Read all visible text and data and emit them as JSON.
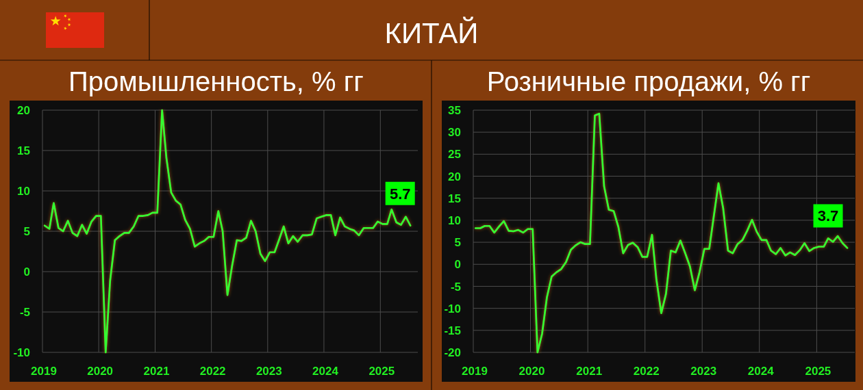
{
  "chart_data": [
    {
      "type": "other",
      "title": "КИТАЙ"
    },
    {
      "type": "line",
      "title": "Промышленность, % гг",
      "color": "#33ff33",
      "x": [
        "2019-01-15",
        "2019-02-15",
        "2019-03-15",
        "2019-04-15",
        "2019-05-15",
        "2019-06-15",
        "2019-07-15",
        "2019-08-15",
        "2019-09-15",
        "2019-10-15",
        "2019-11-15",
        "2019-12-15",
        "2020-01-15",
        "2020-02-15",
        "2020-03-15",
        "2020-04-15",
        "2020-05-15",
        "2020-06-15",
        "2020-07-15",
        "2020-08-15",
        "2020-09-15",
        "2020-10-15",
        "2020-11-15",
        "2020-12-15",
        "2021-01-15",
        "2021-02-15",
        "2021-03-15",
        "2021-04-15",
        "2021-05-15",
        "2021-06-15",
        "2021-07-15",
        "2021-08-15",
        "2021-09-15",
        "2021-10-15",
        "2021-11-15",
        "2021-12-15",
        "2022-01-15",
        "2022-02-15",
        "2022-03-15",
        "2022-04-15",
        "2022-05-15",
        "2022-06-15",
        "2022-07-15",
        "2022-08-15",
        "2022-09-15",
        "2022-10-15",
        "2022-11-15",
        "2022-12-15",
        "2023-01-15",
        "2023-02-15",
        "2023-03-15",
        "2023-04-15",
        "2023-05-15",
        "2023-06-15",
        "2023-07-15",
        "2023-08-15",
        "2023-09-15",
        "2023-10-15",
        "2023-11-15",
        "2023-12-15",
        "2024-01-15",
        "2024-02-15",
        "2024-03-15",
        "2024-04-15",
        "2024-05-15",
        "2024-06-15",
        "2024-07-15",
        "2024-08-15",
        "2024-09-15",
        "2024-10-15",
        "2024-11-15",
        "2024-12-15",
        "2025-01-15",
        "2025-02-15",
        "2025-03-15",
        "2025-04-15",
        "2025-05-15",
        "2025-06-15",
        "2025-07-15"
      ],
      "values": [
        5.7,
        5.3,
        8.5,
        5.4,
        5.0,
        6.3,
        4.8,
        4.4,
        5.8,
        4.7,
        6.2,
        6.9,
        6.9,
        -10,
        -1.1,
        3.9,
        4.4,
        4.8,
        4.8,
        5.6,
        6.9,
        6.9,
        7.0,
        7.3,
        7.3,
        20,
        14.1,
        9.8,
        8.8,
        8.3,
        6.4,
        5.3,
        3.1,
        3.5,
        3.8,
        4.3,
        4.3,
        7.5,
        5.0,
        -2.9,
        0.7,
        3.9,
        3.8,
        4.2,
        6.3,
        5.0,
        2.2,
        1.3,
        2.4,
        2.4,
        3.9,
        5.6,
        3.5,
        4.4,
        3.7,
        4.5,
        4.5,
        4.6,
        6.6,
        6.8,
        7.0,
        7.0,
        4.5,
        6.7,
        5.6,
        5.3,
        5.1,
        4.5,
        5.4,
        5.4,
        5.4,
        6.2,
        5.9,
        5.9,
        7.7,
        6.1,
        5.8,
        6.8,
        5.7
      ],
      "xlim": [
        "2019-01",
        "2025-09"
      ],
      "xticks": [
        "2019",
        "2020",
        "2021",
        "2022",
        "2023",
        "2024",
        "2025"
      ],
      "ylim": [
        -10,
        20
      ],
      "yticks": [
        -10,
        -5,
        0,
        5,
        10,
        15,
        20
      ],
      "grid": true,
      "annotations": [
        {
          "text": "5.7",
          "x": "2025-07-15",
          "y": 5.7
        }
      ]
    },
    {
      "type": "line",
      "title": "Розничные продажи, % гг",
      "color": "#33ff33",
      "x": [
        "2019-01-15",
        "2019-02-15",
        "2019-03-15",
        "2019-04-15",
        "2019-05-15",
        "2019-06-15",
        "2019-07-15",
        "2019-08-15",
        "2019-09-15",
        "2019-10-15",
        "2019-11-15",
        "2019-12-15",
        "2020-01-15",
        "2020-02-15",
        "2020-03-15",
        "2020-04-15",
        "2020-05-15",
        "2020-06-15",
        "2020-07-15",
        "2020-08-15",
        "2020-09-15",
        "2020-10-15",
        "2020-11-15",
        "2020-12-15",
        "2021-01-15",
        "2021-02-15",
        "2021-03-15",
        "2021-04-15",
        "2021-05-15",
        "2021-06-15",
        "2021-07-15",
        "2021-08-15",
        "2021-09-15",
        "2021-10-15",
        "2021-11-15",
        "2021-12-15",
        "2022-01-15",
        "2022-02-15",
        "2022-03-15",
        "2022-04-15",
        "2022-05-15",
        "2022-06-15",
        "2022-07-15",
        "2022-08-15",
        "2022-09-15",
        "2022-10-15",
        "2022-11-15",
        "2022-12-15",
        "2023-01-15",
        "2023-02-15",
        "2023-03-15",
        "2023-04-15",
        "2023-05-15",
        "2023-06-15",
        "2023-07-15",
        "2023-08-15",
        "2023-09-15",
        "2023-10-15",
        "2023-11-15",
        "2023-12-15",
        "2024-01-15",
        "2024-02-15",
        "2024-03-15",
        "2024-04-15",
        "2024-05-15",
        "2024-06-15",
        "2024-07-15",
        "2024-08-15",
        "2024-09-15",
        "2024-10-15",
        "2024-11-15",
        "2024-12-15",
        "2025-01-15",
        "2025-02-15",
        "2025-03-15",
        "2025-04-15",
        "2025-05-15",
        "2025-06-15",
        "2025-07-15"
      ],
      "values": [
        8.2,
        8.2,
        8.7,
        8.7,
        7.2,
        8.6,
        9.8,
        7.6,
        7.5,
        7.8,
        7.2,
        8.0,
        8.0,
        -20,
        -15.8,
        -7.5,
        -2.8,
        -1.8,
        -1.1,
        0.5,
        3.3,
        4.3,
        5.0,
        4.6,
        4.6,
        33.8,
        34.2,
        17.7,
        12.4,
        12.1,
        8.5,
        2.5,
        4.4,
        4.9,
        3.9,
        1.7,
        1.7,
        6.7,
        -3.5,
        -11.1,
        -6.7,
        3.1,
        2.7,
        5.4,
        2.5,
        -0.5,
        -5.9,
        -1.8,
        3.5,
        3.5,
        10.6,
        18.4,
        12.7,
        3.1,
        2.5,
        4.6,
        5.5,
        7.6,
        10.1,
        7.4,
        5.5,
        5.5,
        3.1,
        2.3,
        3.7,
        2.0,
        2.7,
        2.1,
        3.2,
        4.8,
        3.0,
        3.7,
        4.0,
        4.0,
        5.9,
        5.1,
        6.4,
        4.8,
        3.7
      ],
      "xlim": [
        "2019-01",
        "2025-09"
      ],
      "xticks": [
        "2019",
        "2020",
        "2021",
        "2022",
        "2023",
        "2024",
        "2025"
      ],
      "ylim": [
        -20,
        35
      ],
      "yticks": [
        -20,
        -15,
        -10,
        -5,
        0,
        5,
        10,
        15,
        20,
        25,
        30,
        35
      ],
      "grid": true,
      "annotations": [
        {
          "text": "3.7",
          "x": "2025-07-15",
          "y": 3.7
        }
      ]
    }
  ]
}
